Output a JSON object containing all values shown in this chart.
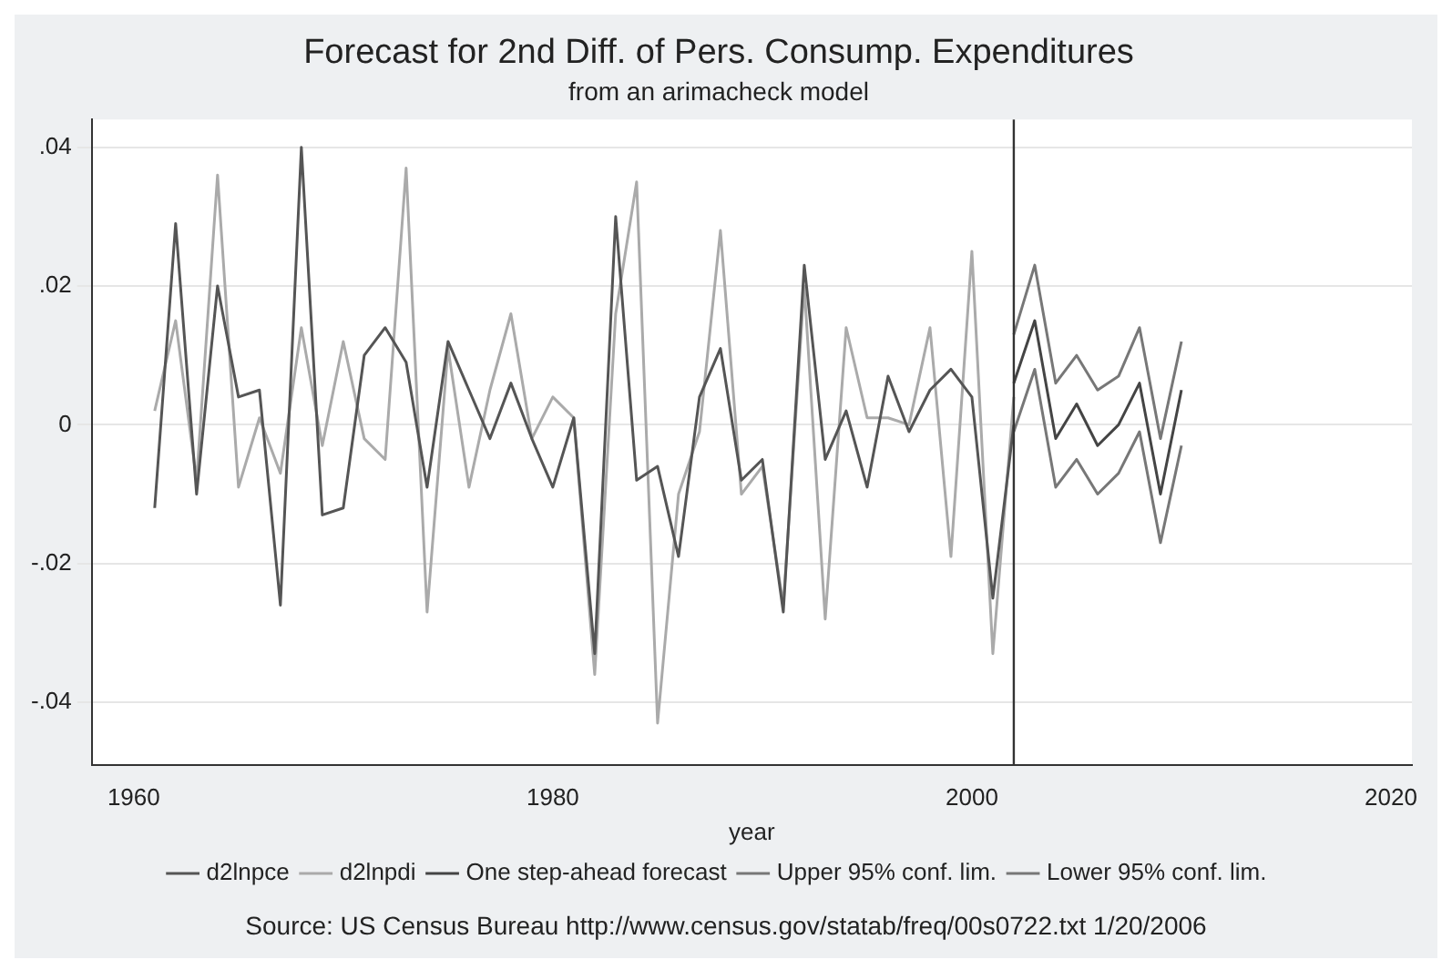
{
  "chart_data": {
    "type": "line",
    "title": "Forecast for 2nd Diff. of Pers. Consump. Expenditures",
    "subtitle": "from an arimacheck model",
    "xlabel": "year",
    "xlim": [
      1958,
      2021
    ],
    "xticks": [
      1960,
      1980,
      2000,
      2020
    ],
    "ylim": [
      -0.049,
      0.044
    ],
    "yticks": [
      {
        "value": -0.04,
        "label": "-.04"
      },
      {
        "value": -0.02,
        "label": "-.02"
      },
      0,
      {
        "value": 0.02,
        "label": ".02"
      },
      {
        "value": 0.04,
        "label": ".04"
      }
    ],
    "grid": "y",
    "legend": "bottom",
    "marker": "none",
    "line_style": "solid",
    "series": [
      {
        "name": "d2lnpce",
        "color": "#555555",
        "x": [
          1961,
          1962,
          1963,
          1964,
          1965,
          1966,
          1967,
          1968,
          1969,
          1970,
          1971,
          1972,
          1973,
          1974,
          1975,
          1976,
          1977,
          1978,
          1979,
          1980,
          1981,
          1982,
          1983,
          1984,
          1985,
          1986,
          1987,
          1988,
          1989,
          1990,
          1991,
          1992,
          1993,
          1994,
          1995,
          1996,
          1997,
          1998,
          1999,
          2000,
          2001,
          2002
        ],
        "values": [
          -0.012,
          0.029,
          -0.01,
          0.02,
          0.004,
          0.005,
          -0.026,
          0.04,
          -0.013,
          -0.012,
          0.01,
          0.014,
          0.009,
          -0.009,
          0.012,
          0.005,
          -0.002,
          0.006,
          -0.002,
          -0.009,
          0.001,
          -0.033,
          0.03,
          -0.008,
          -0.006,
          -0.019,
          0.004,
          0.011,
          -0.008,
          -0.005,
          -0.027,
          0.023,
          -0.005,
          0.002,
          -0.009,
          0.007,
          -0.001,
          0.005,
          0.008,
          0.004,
          -0.025,
          0
        ]
      },
      {
        "name": "d2lnpdi",
        "color": "#aaaaaa",
        "x": [
          1961,
          1962,
          1963,
          1964,
          1965,
          1966,
          1967,
          1968,
          1969,
          1970,
          1971,
          1972,
          1973,
          1974,
          1975,
          1976,
          1977,
          1978,
          1979,
          1980,
          1981,
          1982,
          1983,
          1984,
          1985,
          1986,
          1987,
          1988,
          1989,
          1990,
          1991,
          1992,
          1993,
          1994,
          1995,
          1996,
          1997,
          1998,
          1999,
          2000,
          2001,
          2002
        ],
        "values": [
          0.002,
          0.015,
          -0.008,
          0.036,
          -0.009,
          0.001,
          -0.007,
          0.014,
          -0.003,
          0.012,
          -0.002,
          -0.005,
          0.037,
          -0.027,
          0.011,
          -0.009,
          0.005,
          0.016,
          -0.002,
          0.004,
          0.001,
          -0.036,
          0.016,
          0.035,
          -0.043,
          -0.01,
          -0.001,
          0.028,
          -0.01,
          -0.006,
          -0.026,
          0.02,
          -0.028,
          0.014,
          0.001,
          0.001,
          0,
          0.014,
          -0.019,
          0.025,
          -0.033,
          0.004
        ]
      },
      {
        "name": "One step-ahead forecast",
        "color": "#444444",
        "x": [
          2002,
          2003,
          2004,
          2005,
          2006,
          2007,
          2008,
          2009,
          2010
        ],
        "values": [
          0.006,
          0.015,
          -0.002,
          0.003,
          -0.003,
          0,
          0.006,
          -0.01,
          0.005
        ]
      },
      {
        "name": "Upper 95% conf. lim.",
        "color": "#777777",
        "x": [
          2002,
          2003,
          2004,
          2005,
          2006,
          2007,
          2008,
          2009,
          2010
        ],
        "values": [
          0.013,
          0.023,
          0.006,
          0.01,
          0.005,
          0.007,
          0.014,
          -0.002,
          0.012
        ]
      },
      {
        "name": "Lower 95% conf. lim.",
        "color": "#777777",
        "x": [
          2002,
          2003,
          2004,
          2005,
          2006,
          2007,
          2008,
          2009,
          2010
        ],
        "values": [
          -0.001,
          0.008,
          -0.009,
          -0.005,
          -0.01,
          -0.007,
          -0.001,
          -0.017,
          -0.003
        ]
      }
    ],
    "ref_lines": [
      {
        "axis": "x",
        "value": 2002,
        "color": "#333333"
      }
    ],
    "annotations": [
      "Source: US Census Bureau http://www.census.gov/statab/freq/00s0722.txt 1/20/2006"
    ]
  }
}
